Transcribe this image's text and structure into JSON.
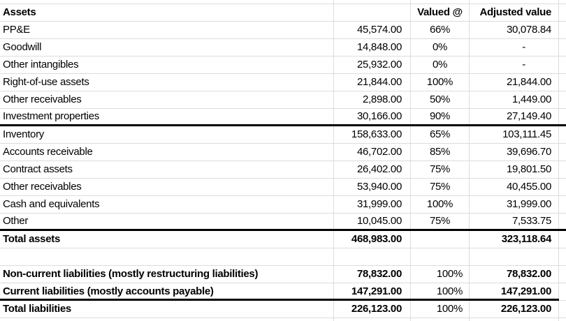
{
  "sheet": {
    "header": {
      "assets": "Assets",
      "valued_at": "Valued @",
      "adjusted_value": "Adjusted value"
    },
    "asset_rows": [
      {
        "label": "PP&E",
        "value": "45,574.00",
        "pct": "66%",
        "adj": "30,078.84"
      },
      {
        "label": "Goodwill",
        "value": "14,848.00",
        "pct": "0%",
        "adj": "-"
      },
      {
        "label": "Other intangibles",
        "value": "25,932.00",
        "pct": "0%",
        "adj": "-"
      },
      {
        "label": "Right-of-use assets",
        "value": "21,844.00",
        "pct": "100%",
        "adj": "21,844.00"
      },
      {
        "label": "Other receivables",
        "value": "2,898.00",
        "pct": "50%",
        "adj": "1,449.00"
      },
      {
        "label": "Investment properties",
        "value": "30,166.00",
        "pct": "90%",
        "adj": "27,149.40"
      },
      {
        "label": "Inventory",
        "value": "158,633.00",
        "pct": "65%",
        "adj": "103,111.45"
      },
      {
        "label": "Accounts receivable",
        "value": "46,702.00",
        "pct": "85%",
        "adj": "39,696.70"
      },
      {
        "label": "Contract assets",
        "value": "26,402.00",
        "pct": "75%",
        "adj": "19,801.50"
      },
      {
        "label": "Other receivables",
        "value": "53,940.00",
        "pct": "75%",
        "adj": "40,455.00"
      },
      {
        "label": "Cash and equivalents",
        "value": "31,999.00",
        "pct": "100%",
        "adj": "31,999.00"
      },
      {
        "label": "Other",
        "value": "10,045.00",
        "pct": "75%",
        "adj": "7,533.75"
      }
    ],
    "total_assets": {
      "label": "Total assets",
      "value": "468,983.00",
      "pct": "",
      "adj": "323,118.64"
    },
    "liability_rows": [
      {
        "label": "Non-current liabilities (mostly restructuring liabilities)",
        "value": "78,832.00",
        "pct": "100%",
        "adj": "78,832.00"
      },
      {
        "label": "Current liabilities (mostly accounts payable)",
        "value": "147,291.00",
        "pct": "100%",
        "adj": "147,291.00"
      }
    ],
    "total_liabilities": {
      "label": "Total liabilities",
      "value": "226,123.00",
      "pct": "100%",
      "adj": "226,123.00"
    },
    "colors": {
      "text": "#000000",
      "gridline": "#dcdcdc",
      "section_border": "#000000",
      "background": "#ffffff"
    }
  }
}
